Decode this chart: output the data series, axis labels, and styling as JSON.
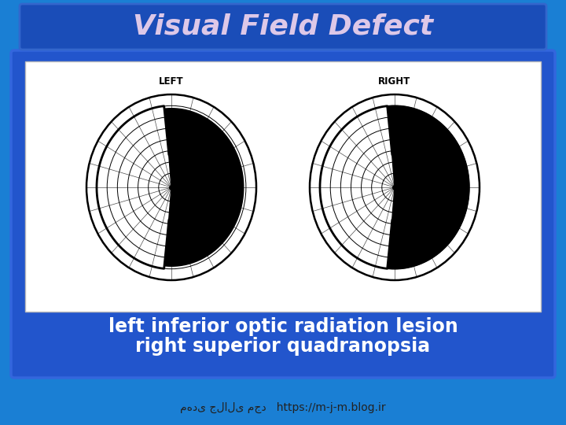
{
  "bg_color": "#1a7fd4",
  "title": "Visual Field Defect",
  "title_color": "#ddc8e8",
  "title_bg_color": "#1a4db8",
  "title_border_color": "#3366cc",
  "title_fontsize": 26,
  "subtitle_line1": "left inferior optic radiation lesion",
  "subtitle_line2": "right superior quadranopsia",
  "subtitle_color": "#ffffff",
  "subtitle_fontsize": 17,
  "footer_text": "مهدی جلالی مجد   https://m-j-m.blog.ir",
  "footer_color": "#222222",
  "footer_fontsize": 10,
  "outer_panel_bg": "#2255cc",
  "outer_panel_border": "#3366dd",
  "image_panel_bg": "#ffffff",
  "image_panel_border": "#bbbbbb",
  "chart_bg": "#f8f8f8",
  "left_label": "LEFT",
  "right_label": "RIGHT"
}
